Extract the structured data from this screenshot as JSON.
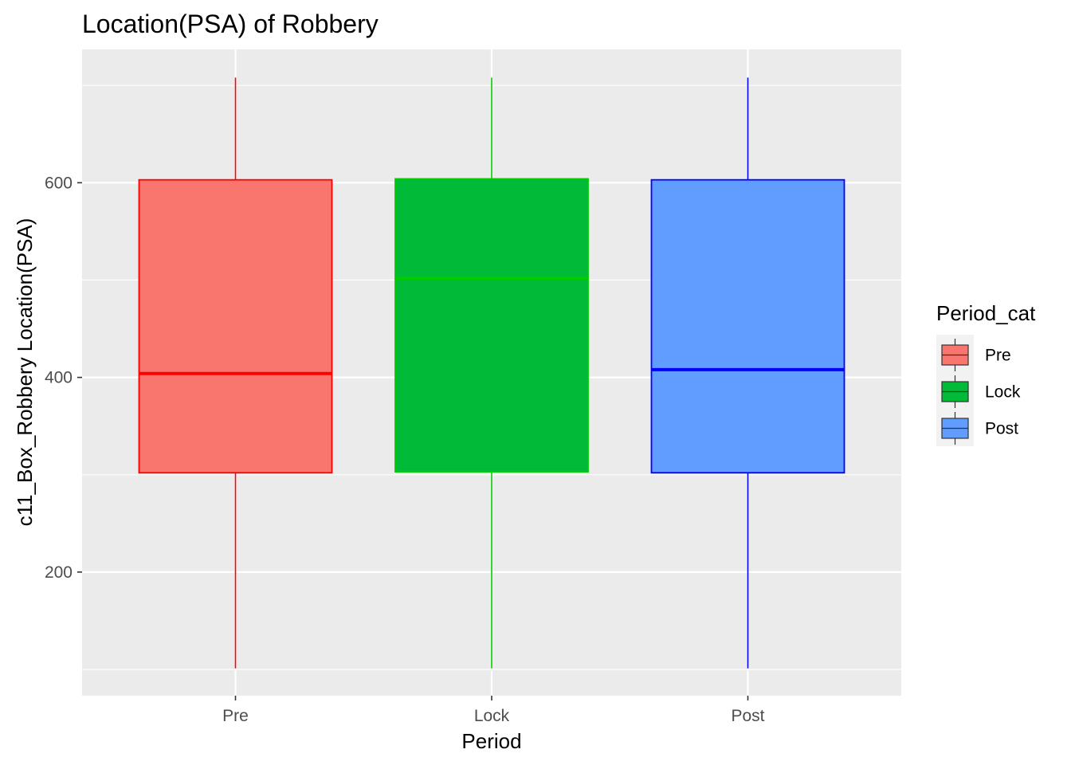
{
  "chart_data": {
    "type": "boxplot",
    "title": "Location(PSA) of Robbery",
    "xlabel": "Period",
    "ylabel": "c11_Box_Robbery Location(PSA)",
    "categories": [
      "Pre",
      "Lock",
      "Post"
    ],
    "ylim": [
      73,
      737
    ],
    "yticks": [
      200,
      400,
      600
    ],
    "grid": true,
    "legend": {
      "title": "Period_cat",
      "position": "right",
      "entries": [
        "Pre",
        "Lock",
        "Post"
      ]
    },
    "boxes": [
      {
        "category": "Pre",
        "min": 101,
        "q1": 302,
        "median": 404,
        "q3": 603,
        "max": 708,
        "fill": "#F8766D",
        "outline": "#FF0000"
      },
      {
        "category": "Lock",
        "min": 101,
        "q1": 303,
        "median": 502,
        "q3": 604,
        "max": 708,
        "fill": "#00BA38",
        "outline": "#00CC00"
      },
      {
        "category": "Post",
        "min": 101,
        "q1": 302,
        "median": 408,
        "q3": 603,
        "max": 708,
        "fill": "#619CFF",
        "outline": "#0000FF"
      }
    ]
  }
}
